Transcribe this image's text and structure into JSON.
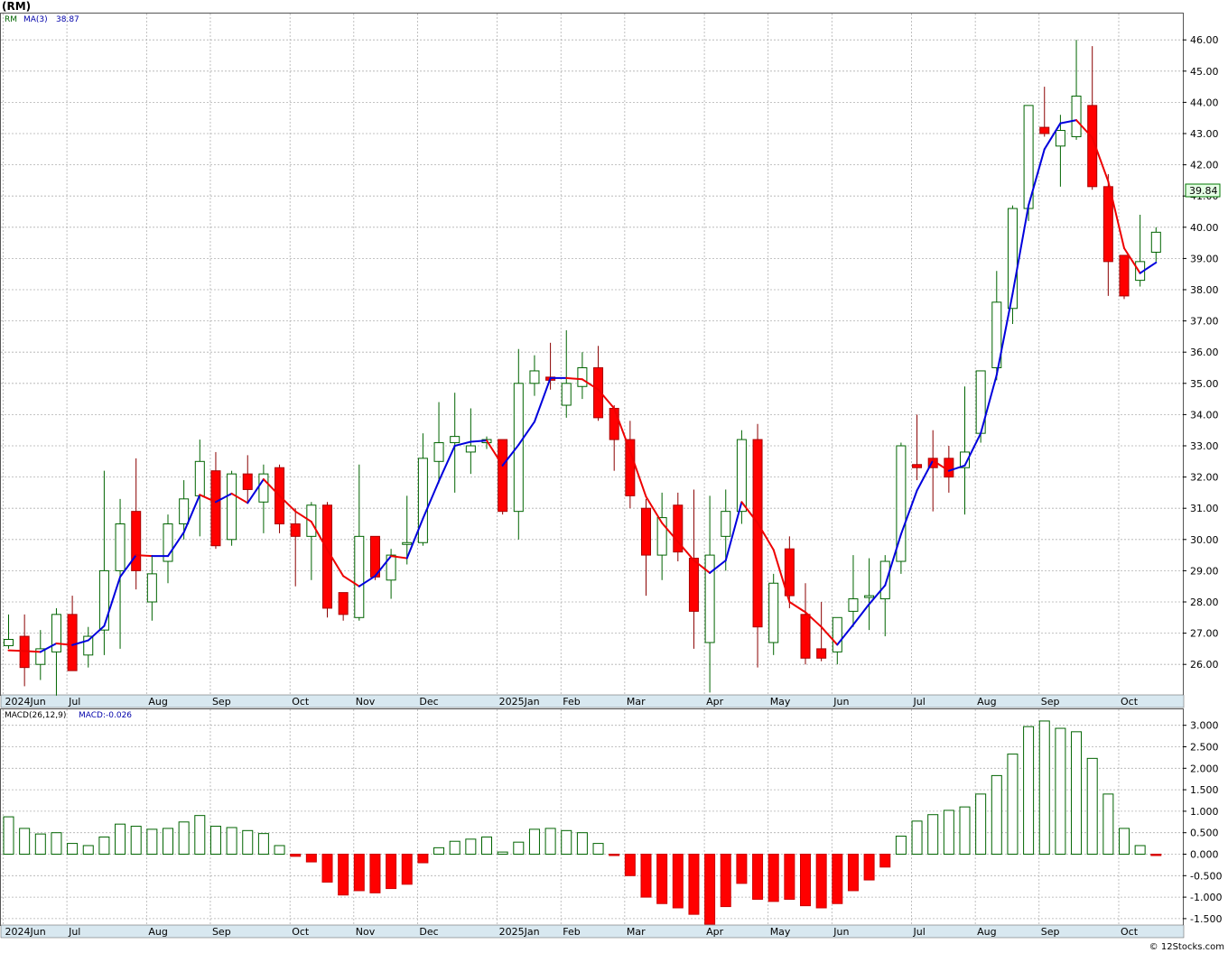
{
  "header": {
    "ticker_label": "(RM)"
  },
  "price_legend": {
    "symbol": "RM",
    "ma_label": "MA(3)",
    "ma_value": "38.87"
  },
  "macd_legend": {
    "label": "MACD(26,12,9)",
    "value_label": "MACD:-0.026"
  },
  "last_price_label": "39.84",
  "watermark": "© 12Stocks.com",
  "colors": {
    "up": "#006400",
    "down": "#ff0000",
    "ma_up": "#0000dd",
    "ma_down": "#ee0000",
    "grid": "#b0b0b0",
    "axis_band": "#d8e8f0"
  },
  "chart_data": [
    {
      "type": "candlestick",
      "title": "(RM)",
      "frequency": "weekly",
      "y_ticks": [
        "26.00",
        "27.00",
        "28.00",
        "29.00",
        "30.00",
        "31.00",
        "32.00",
        "33.00",
        "34.00",
        "35.00",
        "36.00",
        "37.00",
        "38.00",
        "39.00",
        "40.00",
        "41.00",
        "42.00",
        "43.00",
        "44.00",
        "45.00",
        "46.00"
      ],
      "ylim": [
        25.0,
        46.4
      ],
      "x_tick_labels": [
        "2024Jun",
        "Jul",
        "Aug",
        "Sep",
        "Oct",
        "Nov",
        "Dec",
        "2025Jan",
        "Feb",
        "Mar",
        "Apr",
        "May",
        "Jun",
        "Jul",
        "Aug",
        "Sep",
        "Oct"
      ],
      "x_tick_bar_index": [
        0,
        4,
        9,
        13,
        18,
        22,
        26,
        31,
        35,
        39,
        44,
        48,
        52,
        57,
        61,
        65,
        70
      ],
      "ohlc": [
        [
          26.6,
          27.6,
          26.5,
          26.8
        ],
        [
          26.9,
          27.6,
          25.3,
          25.9
        ],
        [
          26.0,
          27.1,
          25.5,
          26.5
        ],
        [
          26.4,
          27.8,
          25.0,
          27.6
        ],
        [
          27.6,
          28.2,
          25.8,
          25.8
        ],
        [
          26.3,
          27.2,
          25.9,
          26.9
        ],
        [
          27.1,
          32.2,
          26.3,
          29.0
        ],
        [
          29.0,
          31.3,
          26.5,
          30.5
        ],
        [
          30.9,
          32.6,
          28.4,
          29.0
        ],
        [
          28.0,
          29.5,
          27.4,
          28.9
        ],
        [
          29.3,
          30.8,
          28.6,
          30.5
        ],
        [
          30.5,
          31.9,
          30.0,
          31.3
        ],
        [
          31.4,
          33.2,
          30.1,
          32.5
        ],
        [
          32.2,
          32.8,
          29.7,
          29.8
        ],
        [
          30.0,
          32.2,
          29.8,
          32.1
        ],
        [
          32.1,
          32.7,
          31.2,
          31.6
        ],
        [
          31.2,
          32.4,
          30.2,
          32.1
        ],
        [
          32.3,
          32.4,
          30.2,
          30.5
        ],
        [
          30.5,
          31.0,
          28.5,
          30.1
        ],
        [
          30.1,
          31.2,
          28.7,
          31.1
        ],
        [
          31.1,
          31.2,
          27.5,
          27.8
        ],
        [
          28.3,
          28.3,
          27.4,
          27.6
        ],
        [
          27.5,
          32.4,
          27.4,
          30.1
        ],
        [
          30.1,
          30.1,
          28.7,
          28.8
        ],
        [
          28.7,
          29.7,
          28.1,
          29.5
        ],
        [
          29.9,
          31.4,
          29.2,
          29.9
        ],
        [
          29.9,
          33.4,
          29.8,
          32.6
        ],
        [
          32.5,
          34.4,
          31.8,
          33.1
        ],
        [
          33.1,
          34.7,
          31.5,
          33.3
        ],
        [
          32.8,
          34.2,
          32.1,
          33.0
        ],
        [
          33.1,
          33.3,
          32.9,
          33.2
        ],
        [
          33.2,
          33.2,
          30.8,
          30.9
        ],
        [
          30.9,
          36.1,
          30.0,
          35.0
        ],
        [
          35.0,
          35.9,
          34.6,
          35.4
        ],
        [
          35.2,
          36.3,
          34.8,
          35.1
        ],
        [
          34.3,
          36.7,
          33.9,
          35.0
        ],
        [
          34.9,
          36.0,
          34.5,
          35.5
        ],
        [
          35.5,
          36.2,
          33.8,
          33.9
        ],
        [
          34.2,
          34.3,
          32.2,
          33.2
        ],
        [
          33.2,
          33.8,
          31.0,
          31.4
        ],
        [
          31.0,
          31.3,
          28.2,
          29.5
        ],
        [
          29.5,
          31.5,
          28.7,
          30.7
        ],
        [
          31.1,
          31.5,
          29.3,
          29.6
        ],
        [
          29.4,
          31.6,
          26.5,
          27.7
        ],
        [
          26.7,
          31.4,
          25.1,
          29.5
        ],
        [
          30.1,
          31.6,
          29.0,
          30.9
        ],
        [
          30.9,
          33.5,
          30.5,
          33.2
        ],
        [
          33.2,
          33.7,
          25.9,
          27.2
        ],
        [
          26.7,
          28.9,
          26.3,
          28.6
        ],
        [
          29.7,
          30.1,
          27.8,
          28.2
        ],
        [
          27.6,
          28.6,
          26.0,
          26.2
        ],
        [
          26.5,
          28.0,
          26.1,
          26.2
        ],
        [
          26.4,
          27.5,
          26.0,
          27.5
        ],
        [
          27.7,
          29.5,
          27.2,
          28.1
        ],
        [
          28.2,
          29.4,
          27.1,
          28.2
        ],
        [
          28.1,
          29.5,
          26.9,
          29.3
        ],
        [
          29.3,
          33.1,
          28.9,
          33.0
        ],
        [
          32.4,
          34.0,
          31.9,
          32.3
        ],
        [
          32.6,
          33.5,
          30.9,
          32.3
        ],
        [
          32.6,
          33.0,
          31.5,
          32.0
        ],
        [
          32.3,
          34.9,
          30.8,
          32.8
        ],
        [
          33.4,
          35.4,
          33.1,
          35.4
        ],
        [
          35.5,
          38.6,
          35.1,
          37.6
        ],
        [
          37.4,
          40.7,
          36.9,
          40.6
        ],
        [
          40.6,
          43.9,
          40.2,
          43.9
        ],
        [
          43.2,
          44.5,
          42.9,
          43.0
        ],
        [
          42.6,
          43.6,
          41.3,
          43.1
        ],
        [
          42.9,
          46.0,
          42.8,
          44.2
        ],
        [
          43.9,
          45.8,
          41.2,
          41.3
        ],
        [
          41.3,
          41.7,
          37.8,
          38.9
        ],
        [
          39.1,
          39.1,
          37.7,
          37.8
        ],
        [
          38.3,
          40.4,
          38.1,
          38.9
        ],
        [
          39.2,
          40.0,
          38.9,
          39.84
        ]
      ],
      "ma3": [
        26.45,
        26.43,
        26.4,
        26.67,
        26.62,
        26.77,
        27.23,
        28.8,
        29.5,
        29.47,
        29.47,
        30.23,
        31.43,
        31.2,
        31.47,
        31.17,
        31.93,
        31.4,
        30.9,
        30.57,
        29.67,
        28.83,
        28.5,
        28.83,
        29.47,
        29.4,
        30.67,
        31.87,
        33.0,
        33.13,
        33.17,
        32.37,
        33.03,
        33.77,
        35.17,
        35.17,
        35.13,
        34.8,
        34.2,
        32.83,
        31.37,
        30.53,
        29.93,
        29.33,
        28.93,
        29.33,
        31.2,
        30.53,
        29.67,
        28.0,
        27.67,
        27.2,
        26.63,
        27.27,
        27.93,
        28.53,
        30.17,
        31.57,
        32.53,
        32.2,
        32.37,
        33.4,
        35.27,
        37.87,
        40.7,
        42.5,
        43.33,
        43.43,
        42.87,
        41.47,
        39.33,
        38.53,
        38.87
      ],
      "ma_label": "MA(3)",
      "last_value": 39.84
    },
    {
      "type": "bar",
      "title": "MACD(26,12,9)",
      "y_ticks": [
        "-1.500",
        "-1.000",
        "-0.500",
        "0.000",
        "0.500",
        "1.000",
        "1.500",
        "2.000",
        "2.500",
        "3.000"
      ],
      "ylim": [
        -1.63,
        3.32
      ],
      "values": [
        0.87,
        0.6,
        0.47,
        0.5,
        0.25,
        0.2,
        0.4,
        0.7,
        0.65,
        0.58,
        0.6,
        0.75,
        0.9,
        0.65,
        0.62,
        0.55,
        0.48,
        0.2,
        -0.05,
        -0.18,
        -0.65,
        -0.95,
        -0.85,
        -0.9,
        -0.8,
        -0.7,
        -0.2,
        0.15,
        0.3,
        0.35,
        0.4,
        0.05,
        0.28,
        0.58,
        0.6,
        0.55,
        0.5,
        0.25,
        -0.03,
        -0.5,
        -1.0,
        -1.15,
        -1.25,
        -1.4,
        -1.63,
        -1.22,
        -0.68,
        -1.05,
        -1.1,
        -1.05,
        -1.2,
        -1.25,
        -1.15,
        -0.85,
        -0.6,
        -0.3,
        0.42,
        0.77,
        0.92,
        1.02,
        1.1,
        1.4,
        1.83,
        2.33,
        2.97,
        3.1,
        2.93,
        2.85,
        2.23,
        1.4,
        0.6,
        0.2,
        -0.026
      ],
      "value_label": "MACD:-0.026"
    }
  ]
}
